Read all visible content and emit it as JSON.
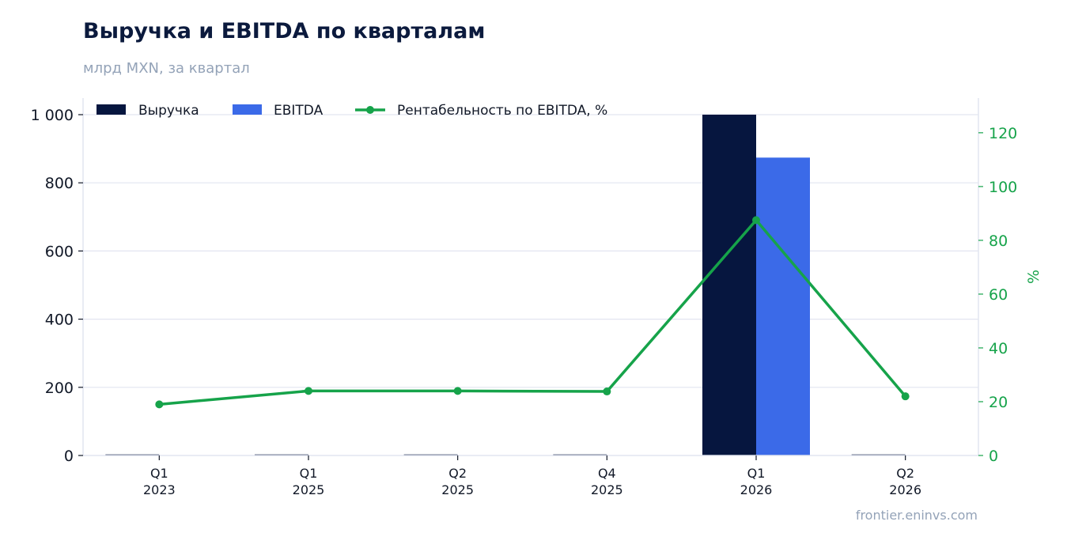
{
  "header": {
    "title": "Выручка и EBITDA по кварталам",
    "subtitle": "млрд MXN, за квартал"
  },
  "footer": {
    "source": "frontier.eninvs.com"
  },
  "colors": {
    "revenue": "#06163f",
    "ebitda": "#3b6ae8",
    "margin": "#16a34a",
    "grid": "#e2e5f0",
    "axis_left": "#111827",
    "axis_right": "#16a34a"
  },
  "chart_data": {
    "type": "bar",
    "categories": [
      [
        "Q1",
        "2023"
      ],
      [
        "Q1",
        "2025"
      ],
      [
        "Q2",
        "2025"
      ],
      [
        "Q4",
        "2025"
      ],
      [
        "Q1",
        "2026"
      ],
      [
        "Q2",
        "2026"
      ]
    ],
    "series": [
      {
        "name": "Выручка",
        "type": "bar",
        "axis": "left",
        "values": [
          3,
          3,
          3,
          3,
          1000,
          3
        ]
      },
      {
        "name": "EBITDA",
        "type": "bar",
        "axis": "left",
        "values": [
          0.6,
          0.7,
          0.7,
          0.7,
          874,
          0.7
        ]
      },
      {
        "name": "Рентабельность по EBITDA, %",
        "type": "line",
        "axis": "right",
        "values": [
          19,
          24,
          24,
          23.8,
          87.5,
          22
        ]
      }
    ],
    "y_left": {
      "ylim": [
        0,
        1000
      ],
      "ticks": [
        0,
        200,
        400,
        600,
        800,
        1000
      ],
      "tick_labels": [
        "0",
        "200",
        "400",
        "600",
        "800",
        "1 000"
      ]
    },
    "y_right": {
      "label": "%",
      "ylim": [
        0,
        132.9
      ],
      "ticks": [
        0,
        20,
        40,
        60,
        80,
        100,
        120
      ],
      "tick_labels": [
        "0",
        "20",
        "40",
        "60",
        "80",
        "100",
        "120"
      ]
    },
    "grid": true,
    "legend_position": "top-left"
  }
}
